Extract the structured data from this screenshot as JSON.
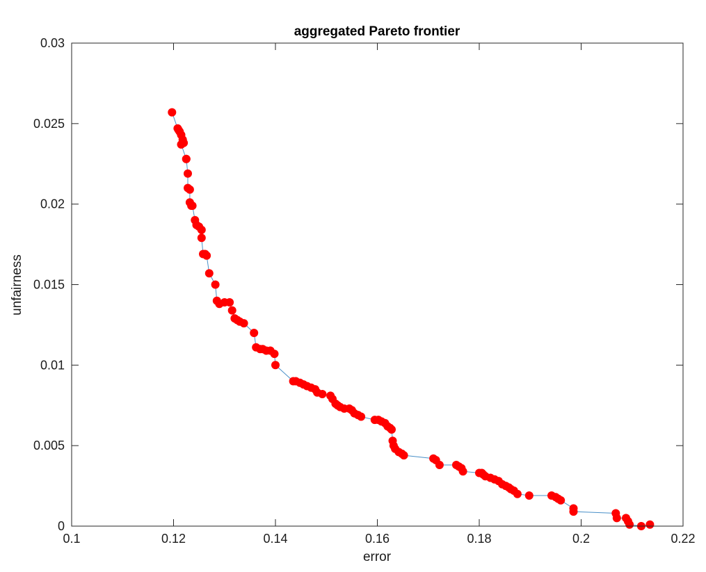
{
  "chart_data": {
    "type": "scatter",
    "title": "aggregated Pareto frontier",
    "xlabel": "error",
    "ylabel": "unfairness",
    "xlim": [
      0.1,
      0.22
    ],
    "ylim": [
      0,
      0.03
    ],
    "xticks": [
      0.1,
      0.12,
      0.14,
      0.16,
      0.18,
      0.2,
      0.22
    ],
    "xtick_labels": [
      "0.1",
      "0.12",
      "0.14",
      "0.16",
      "0.18",
      "0.2",
      "0.22"
    ],
    "yticks": [
      0,
      0.005,
      0.01,
      0.015,
      0.02,
      0.025,
      0.03
    ],
    "ytick_labels": [
      "0",
      "0.005",
      "0.01",
      "0.015",
      "0.02",
      "0.025",
      "0.03"
    ],
    "grid": false,
    "line_color": "#4a90c8",
    "marker_color": "#ff0000",
    "series": [
      {
        "x": [
          0.1197,
          0.1208,
          0.121,
          0.1212,
          0.1215,
          0.1218,
          0.122,
          0.1215,
          0.1225,
          0.1225,
          0.1228,
          0.1228,
          0.1232,
          0.1232,
          0.1235,
          0.1237,
          0.1242,
          0.1245,
          0.125,
          0.1255,
          0.1255,
          0.1258,
          0.1262,
          0.1265,
          0.127,
          0.1282,
          0.1285,
          0.129,
          0.13,
          0.131,
          0.1315,
          0.132,
          0.1325,
          0.133,
          0.1338,
          0.1358,
          0.1362,
          0.137,
          0.1375,
          0.1382,
          0.139,
          0.1398,
          0.14,
          0.1435,
          0.144,
          0.1448,
          0.1455,
          0.1462,
          0.147,
          0.1478,
          0.1482,
          0.1492,
          0.1508,
          0.1512,
          0.1518,
          0.1522,
          0.1527,
          0.1535,
          0.1545,
          0.155,
          0.1555,
          0.1562,
          0.1568,
          0.1595,
          0.1602,
          0.1608,
          0.1615,
          0.162,
          0.1625,
          0.1628,
          0.163,
          0.1632,
          0.1635,
          0.1642,
          0.1648,
          0.1652,
          0.171,
          0.1715,
          0.1722,
          0.1755,
          0.176,
          0.1765,
          0.1768,
          0.18,
          0.1805,
          0.1808,
          0.1812,
          0.1822,
          0.183,
          0.1838,
          0.1845,
          0.1852,
          0.1858,
          0.1862,
          0.1868,
          0.1875,
          0.1898,
          0.1942,
          0.195,
          0.1955,
          0.196,
          0.1985,
          0.1985,
          0.2068,
          0.207,
          0.2088,
          0.2092,
          0.2095,
          0.2118,
          0.2135
        ],
        "y": [
          0.0257,
          0.0247,
          0.0246,
          0.0245,
          0.0243,
          0.024,
          0.0238,
          0.0237,
          0.0228,
          0.0228,
          0.0219,
          0.021,
          0.0209,
          0.0201,
          0.0199,
          0.0199,
          0.019,
          0.0187,
          0.0186,
          0.0184,
          0.0179,
          0.0169,
          0.0169,
          0.0168,
          0.0157,
          0.015,
          0.014,
          0.0138,
          0.0139,
          0.0139,
          0.0134,
          0.0129,
          0.0128,
          0.0127,
          0.0126,
          0.012,
          0.0111,
          0.011,
          0.011,
          0.0109,
          0.0109,
          0.0107,
          0.01,
          0.009,
          0.009,
          0.0089,
          0.0088,
          0.0087,
          0.0086,
          0.0085,
          0.0083,
          0.0082,
          0.0081,
          0.0079,
          0.0076,
          0.0075,
          0.0074,
          0.0073,
          0.0073,
          0.0072,
          0.007,
          0.0069,
          0.0068,
          0.0066,
          0.0066,
          0.0065,
          0.0064,
          0.0062,
          0.0061,
          0.006,
          0.0053,
          0.005,
          0.0048,
          0.0046,
          0.0045,
          0.0044,
          0.0042,
          0.0041,
          0.0038,
          0.0038,
          0.0037,
          0.0036,
          0.0034,
          0.0033,
          0.0033,
          0.0032,
          0.0031,
          0.003,
          0.0029,
          0.0028,
          0.0026,
          0.0025,
          0.0024,
          0.0023,
          0.0022,
          0.002,
          0.0019,
          0.0019,
          0.0018,
          0.0017,
          0.0016,
          0.0011,
          0.0009,
          0.0008,
          0.0005,
          0.0005,
          0.0003,
          0.0001,
          0.0,
          0.0001
        ]
      }
    ]
  }
}
